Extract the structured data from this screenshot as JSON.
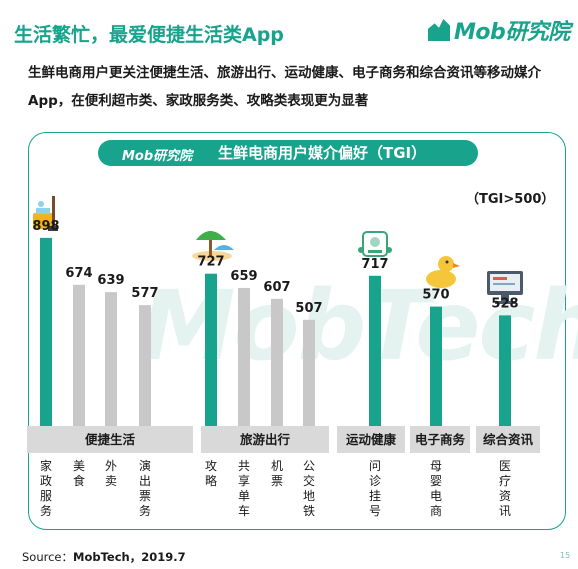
{
  "header": {
    "title": "生活繁忙，最爱便捷生活类App",
    "brand": "Mob研究院",
    "subtitle": "生鲜电商用户更关注便捷生活、旅游出行、运动健康、电子商务和综合资讯等移动媒介App，在便利超市类、家政服务类、攻略类表现更为显著"
  },
  "panel": {
    "brand": "Mob研究院",
    "title": "生鲜电商用户媒介偏好（TGI）",
    "note": "（TGI>500）",
    "watermark": "MobTech"
  },
  "footer": {
    "source_label": "Source：",
    "source_value": "MobTech，2019.7",
    "page_number": "15"
  },
  "icons": [
    "cleaning-bucket-icon",
    "beach-umbrella-icon",
    "fitness-robot-icon",
    "rubber-duck-icon",
    "computer-monitor-icon"
  ],
  "colors": {
    "accent": "#17a38c",
    "bar_gray": "#c8c8c8",
    "group_band": "#d9d9d9"
  },
  "chart_data": {
    "type": "bar",
    "title": "生鲜电商用户媒介偏好（TGI）",
    "ylabel": "",
    "note": "（TGI>500）",
    "ylim": [
      0,
      950
    ],
    "groups": [
      {
        "name": "便捷生活",
        "categories": [
          "家政服务",
          "美食",
          "外卖",
          "演出票务"
        ],
        "values": [
          898,
          674,
          639,
          577
        ]
      },
      {
        "name": "旅游出行",
        "categories": [
          "攻略",
          "共享单车",
          "机票",
          "公交地铁"
        ],
        "values": [
          727,
          659,
          607,
          507
        ]
      },
      {
        "name": "运动健康",
        "categories": [
          "问诊挂号"
        ],
        "values": [
          717
        ]
      },
      {
        "name": "电子商务",
        "categories": [
          "母婴电商"
        ],
        "values": [
          570
        ]
      },
      {
        "name": "综合资讯",
        "categories": [
          "医疗资讯"
        ],
        "values": [
          528
        ]
      }
    ]
  }
}
